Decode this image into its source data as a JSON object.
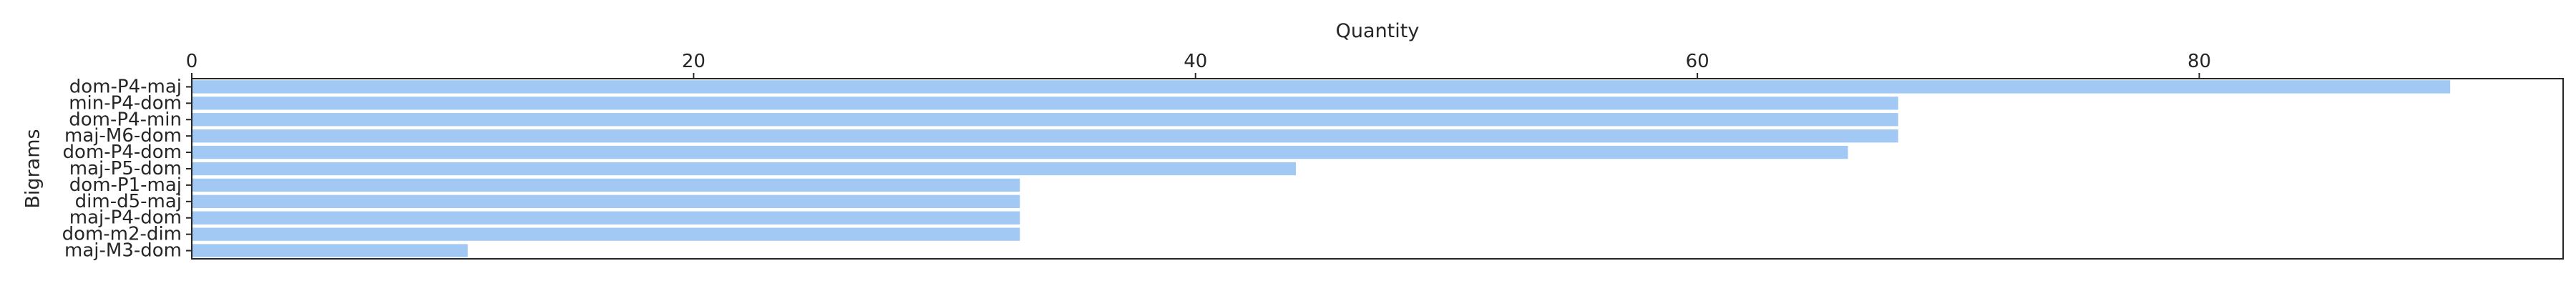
{
  "chart_data": {
    "type": "bar",
    "orientation": "horizontal",
    "title": "",
    "xlabel": "Quantity",
    "ylabel": "Bigrams",
    "x_axis_position": "top",
    "xlim": [
      0,
      94.5
    ],
    "xticks": [
      0,
      20,
      40,
      60,
      80
    ],
    "grid": false,
    "legend": "none",
    "bar_color": "#a1c9f4",
    "categories": [
      "dom-P4-maj",
      "min-P4-dom",
      "dom-P4-min",
      "maj-M6-dom",
      "dom-P4-dom",
      "maj-P5-dom",
      "dom-P1-maj",
      "dim-d5-maj",
      "maj-P4-dom",
      "dom-m2-dim",
      "maj-M3-dom"
    ],
    "values": [
      90,
      68,
      68,
      68,
      66,
      44,
      33,
      33,
      33,
      33,
      11
    ]
  }
}
